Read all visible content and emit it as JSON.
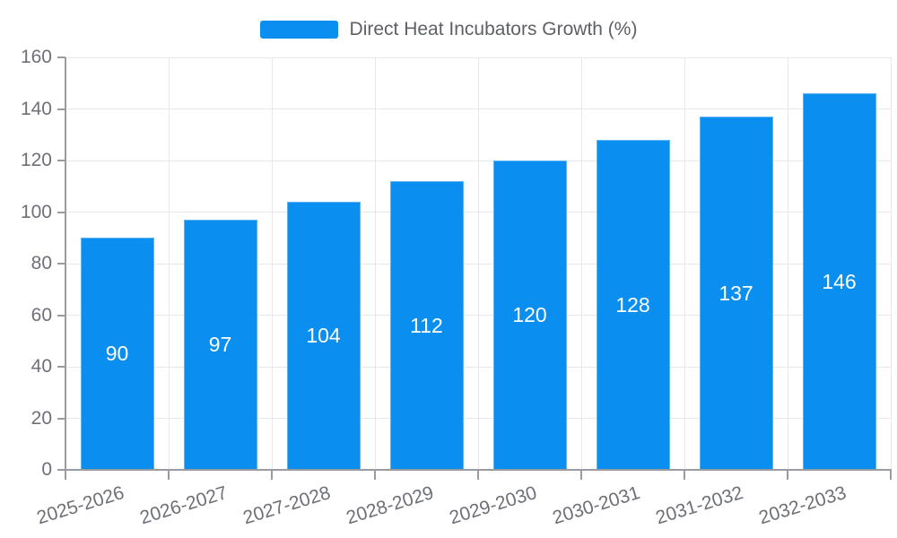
{
  "legend": {
    "label": "Direct Heat Incubators Growth (%)"
  },
  "chart_data": {
    "type": "bar",
    "title": "",
    "xlabel": "",
    "ylabel": "",
    "categories": [
      "2025-2026",
      "2026-2027",
      "2027-2028",
      "2028-2029",
      "2029-2030",
      "2030-2031",
      "2031-2032",
      "2032-2033"
    ],
    "series": [
      {
        "name": "Direct Heat Incubators Growth (%)",
        "values": [
          90,
          97,
          104,
          112,
          120,
          128,
          137,
          146
        ]
      }
    ],
    "ylim": [
      0,
      160
    ],
    "ytick_step": 20,
    "yticks": [
      0,
      20,
      40,
      60,
      80,
      100,
      120,
      140,
      160
    ],
    "grid": "on",
    "legend_position": "top-center",
    "value_labels": "inside-center",
    "x_label_rotation_deg": -17,
    "colors": {
      "bar": "#0a8ff1",
      "bar_value_label": "#ffffff",
      "axis_labels": "#6e7079",
      "legend_text": "#5d6066",
      "gridline": "#e7e7ec",
      "axis_line": "#9a9aa1",
      "background": "#ffffff"
    }
  }
}
